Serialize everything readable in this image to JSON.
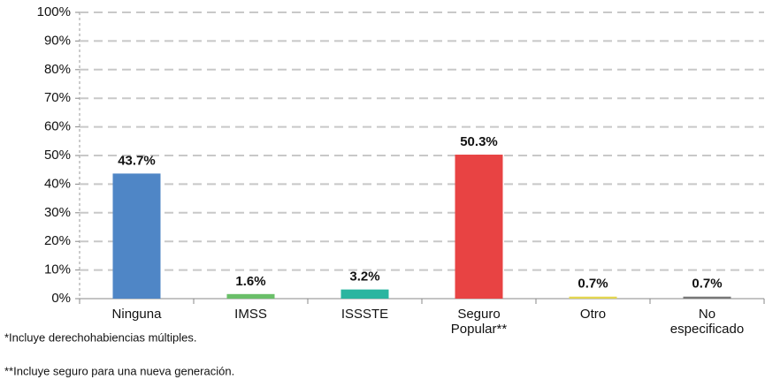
{
  "chart_data": {
    "type": "bar",
    "categories": [
      "Ninguna",
      "IMSS",
      "ISSSTE",
      "Seguro Popular**",
      "Otro",
      "No especificado"
    ],
    "values": [
      43.7,
      1.6,
      3.2,
      50.3,
      0.7,
      0.7
    ],
    "value_labels": [
      "43.7%",
      "1.6%",
      "3.2%",
      "50.3%",
      "0.7%",
      "0.7%"
    ],
    "colors": [
      "#4f86c6",
      "#6abf69",
      "#2bb5a0",
      "#e84343",
      "#e3d64f",
      "#777777"
    ],
    "ylim": [
      0,
      100
    ],
    "yticks": [
      {
        "value": 0,
        "label": "0%"
      },
      {
        "value": 10,
        "label": "10%"
      },
      {
        "value": 20,
        "label": "20%"
      },
      {
        "value": 30,
        "label": "30%"
      },
      {
        "value": 40,
        "label": "40%"
      },
      {
        "value": 50,
        "label": "50%"
      },
      {
        "value": 60,
        "label": "60%"
      },
      {
        "value": 70,
        "label": "70%"
      },
      {
        "value": 80,
        "label": "80%"
      },
      {
        "value": 90,
        "label": "90%"
      },
      {
        "value": 100,
        "label": "100%"
      }
    ],
    "grid": true,
    "notes": [
      "*Incluye derechohabiencias múltiples.",
      "**Incluye seguro para una nueva generación."
    ]
  }
}
